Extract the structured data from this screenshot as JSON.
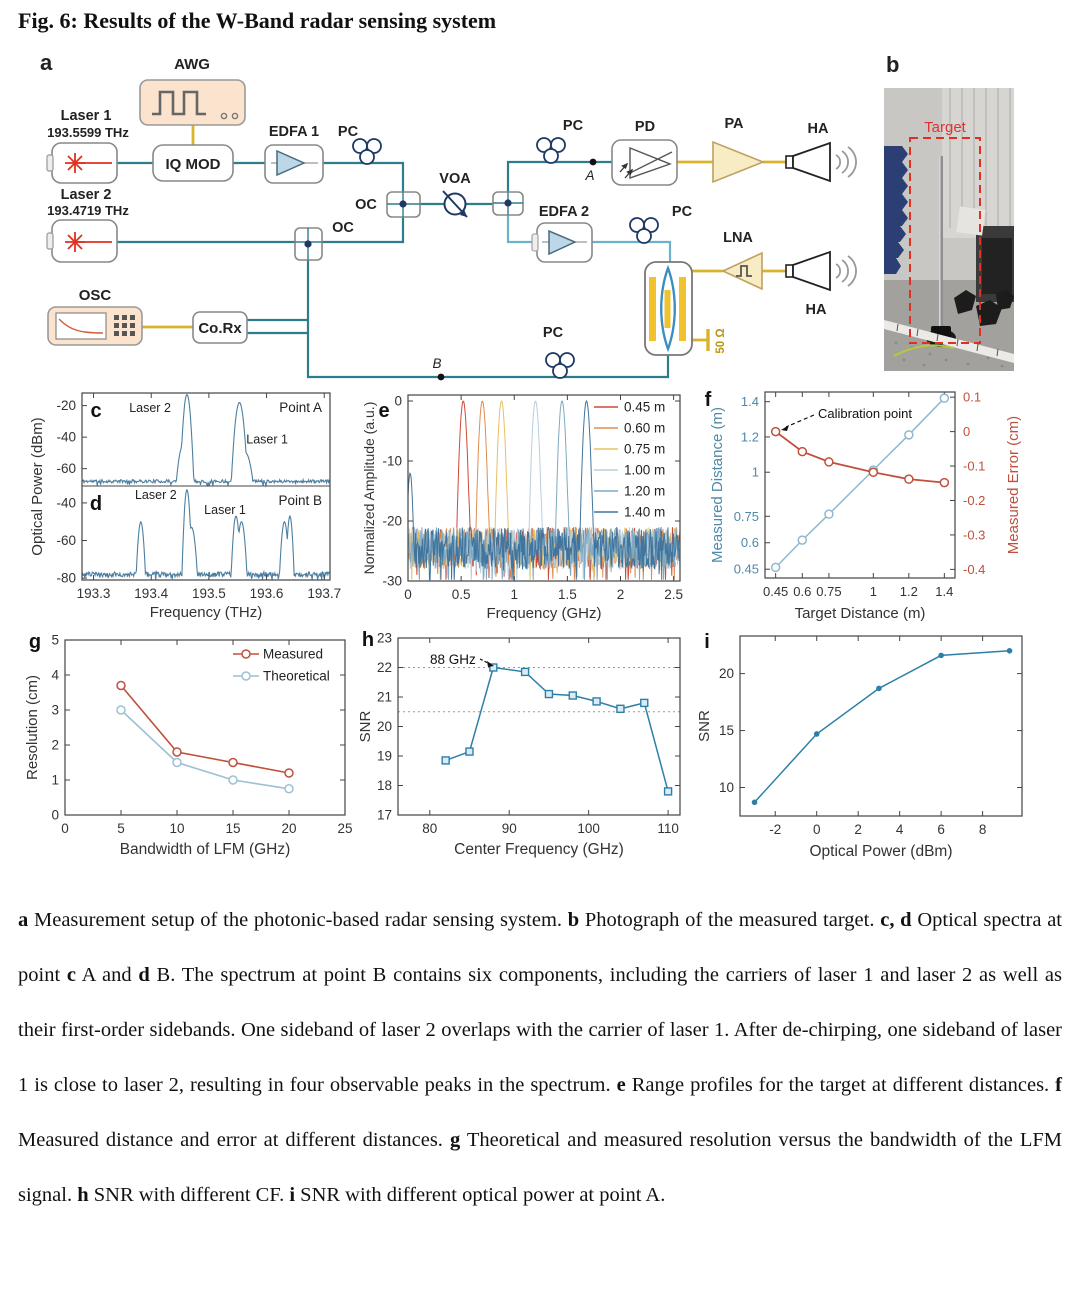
{
  "title": "Fig. 6: Results of the W-Band radar sensing system",
  "diagram": {
    "letter": "a",
    "awg": "AWG",
    "iq_mod": "IQ MOD",
    "laser1": "Laser 1",
    "laser1_freq": "193.5599 THz",
    "laser2": "Laser 2",
    "laser2_freq": "193.4719 THz",
    "edfa1": "EDFA 1",
    "edfa2": "EDFA 2",
    "pc": "PC",
    "oc": "OC",
    "voa": "VOA",
    "osc": "OSC",
    "corx": "Co.Rx",
    "pd": "PD",
    "pa": "PA",
    "lna": "LNA",
    "ha": "HA",
    "term": "50 Ω",
    "point_a": "A",
    "point_b": "B"
  },
  "photo": {
    "letter": "b",
    "target": "Target"
  },
  "chart_data": {
    "cd": {
      "type": "line",
      "xlabel": "Frequency (THz)",
      "ylabel": "Optical Power (dBm)",
      "xlim": [
        193.28,
        193.71
      ],
      "xticks": [
        "193.3",
        "193.4",
        "193.5",
        "193.6",
        "193.7"
      ],
      "xtick_vals": [
        193.3,
        193.4,
        193.5,
        193.6,
        193.7
      ],
      "panels": [
        {
          "letter": "c",
          "corner": "Point A",
          "ylim": [
            -71,
            -12
          ],
          "yticks": [
            -20,
            -40,
            -60
          ],
          "baseline": -68,
          "noise": 1.0,
          "peaks": [
            [
              193.462,
              -13,
              0.0016
            ],
            [
              193.4555,
              -45,
              0.0025
            ],
            [
              193.553,
              -18,
              0.002
            ],
            [
              193.5635,
              -50,
              0.003
            ]
          ],
          "peak_labels": [
            {
              "text": "Laser 2",
              "x": 193.398,
              "y": -24
            },
            {
              "text": "Laser 1",
              "x": 193.601,
              "y": -44
            }
          ]
        },
        {
          "letter": "d",
          "corner": "Point B",
          "ylim": [
            -81,
            -31
          ],
          "yticks": [
            -40,
            -60,
            -80
          ],
          "baseline": -78,
          "noise": 1.3,
          "peaks": [
            [
              193.382,
              -50,
              0.0015
            ],
            [
              193.462,
              -33,
              0.0013
            ],
            [
              193.47,
              -53,
              0.002
            ],
            [
              193.547,
              -47,
              0.0015
            ],
            [
              193.5565,
              -50,
              0.0018
            ],
            [
              193.631,
              -50,
              0.0016
            ],
            [
              193.6405,
              -47,
              0.0013
            ]
          ],
          "peak_labels": [
            {
              "text": "Laser 2",
              "x": 193.408,
              "y": -38
            },
            {
              "text": "Laser 1",
              "x": 193.528,
              "y": -46
            }
          ]
        }
      ]
    },
    "e": {
      "type": "line",
      "letter": "e",
      "xlabel": "Frequency (GHz)",
      "ylabel": "Normalized Amplitude (a.u.)",
      "xlim": [
        0,
        2.56
      ],
      "xticks": [
        "0",
        "0.5",
        "1",
        "1.5",
        "2",
        "2.5"
      ],
      "xtick_vals": [
        0,
        0.5,
        1,
        1.5,
        2,
        2.5
      ],
      "ylim": [
        -30,
        1
      ],
      "yticks": [
        0,
        -10,
        -20,
        -30
      ],
      "noise_floor": -24.5,
      "series": [
        {
          "name": "0.45 m",
          "color": "#cd4a38",
          "peak": 0.52
        },
        {
          "name": "0.60 m",
          "color": "#dd8d52",
          "peak": 0.7
        },
        {
          "name": "0.75 m",
          "color": "#e7c06a",
          "peak": 0.88
        },
        {
          "name": "1.00 m",
          "color": "#b9cfdc",
          "peak": 1.2
        },
        {
          "name": "1.20 m",
          "color": "#7ea9c2",
          "peak": 1.45
        },
        {
          "name": "1.40 m",
          "color": "#41759d",
          "peak": 1.68
        }
      ]
    },
    "f": {
      "type": "line",
      "letter": "f",
      "xlabel": "Target Distance (m)",
      "ylabel_left": "Measured Distance (m)",
      "ylabel_right": "Measured Error (cm)",
      "color_left": "#8fb8cc",
      "color_left_text": "#4d8aa8",
      "color_right": "#c0503c",
      "xlim": [
        0.39,
        1.46
      ],
      "xticks": [
        "0.45",
        "0.6",
        "0.75",
        "1",
        "1.2",
        "1.4"
      ],
      "xtick_vals": [
        0.45,
        0.6,
        0.75,
        1,
        1.2,
        1.4
      ],
      "ylim_left": [
        0.4,
        1.455
      ],
      "yticks_left": [
        "0.45",
        "0.6",
        "0.75",
        "1",
        "1.2",
        "1.4"
      ],
      "ytick_vals_left": [
        0.45,
        0.6,
        0.75,
        1,
        1.2,
        1.4
      ],
      "ylim_right": [
        -0.425,
        0.115
      ],
      "yticks_right": [
        "0.1",
        "0",
        "-0.1",
        "-0.2",
        "-0.3",
        "-0.4"
      ],
      "ytick_vals_right": [
        0.1,
        0,
        -0.1,
        -0.2,
        -0.3,
        -0.4
      ],
      "x": [
        0.45,
        0.6,
        0.75,
        1.0,
        1.2,
        1.4
      ],
      "measured_distance": [
        0.46,
        0.615,
        0.762,
        1.012,
        1.212,
        1.42
      ],
      "measured_error": [
        0.0,
        -0.058,
        -0.088,
        -0.118,
        -0.138,
        -0.148
      ],
      "annotation": "Calibration point"
    },
    "g": {
      "type": "line",
      "letter": "g",
      "xlabel": "Bandwidth of LFM (GHz)",
      "ylabel": "Resolution (cm)",
      "xlim": [
        0,
        25
      ],
      "xticks": [
        0,
        5,
        10,
        15,
        20,
        25
      ],
      "ylim": [
        0,
        5
      ],
      "yticks": [
        0,
        1,
        2,
        3,
        4,
        5
      ],
      "x": [
        5,
        10,
        15,
        20
      ],
      "series": [
        {
          "name": "Measured",
          "color": "#c0503c",
          "values": [
            3.7,
            1.8,
            1.5,
            1.2
          ]
        },
        {
          "name": "Theoretical",
          "color": "#9cc0d4",
          "values": [
            3.0,
            1.5,
            1.0,
            0.75
          ]
        }
      ]
    },
    "h": {
      "type": "line",
      "letter": "h",
      "xlabel": "Center Frequency (GHz)",
      "ylabel": "SNR",
      "xlim": [
        76,
        111.5
      ],
      "xticks": [
        80,
        90,
        100,
        110
      ],
      "ylim": [
        17,
        23
      ],
      "yticks": [
        17,
        18,
        19,
        20,
        21,
        22,
        23
      ],
      "x": [
        82,
        85,
        88,
        92,
        95,
        98,
        101,
        104,
        107,
        110
      ],
      "values": [
        18.85,
        19.15,
        22.0,
        21.85,
        21.1,
        21.05,
        20.85,
        20.6,
        20.8,
        17.8
      ],
      "color": "#2e7fa8",
      "annotation": "88 GHz",
      "ref_lines": [
        22,
        20.5
      ]
    },
    "i": {
      "type": "line",
      "letter": "i",
      "xlabel": "Optical Power (dBm)",
      "ylabel": "SNR",
      "xlim": [
        -3.7,
        9.9
      ],
      "xticks": [
        -2,
        0,
        2,
        4,
        6,
        8
      ],
      "ylim": [
        7.5,
        23.3
      ],
      "yticks": [
        10,
        15,
        20
      ],
      "x": [
        -3,
        0,
        3,
        6,
        9.3
      ],
      "values": [
        8.7,
        14.7,
        18.7,
        21.6,
        22.0
      ],
      "color": "#2e7fa8"
    }
  },
  "caption": {
    "segments": [
      {
        "bold": true,
        "text": "a"
      },
      {
        "bold": false,
        "text": " Measurement setup of the photonic-based radar sensing system. "
      },
      {
        "bold": true,
        "text": "b"
      },
      {
        "bold": false,
        "text": " Photograph of the measured target. "
      },
      {
        "bold": true,
        "text": "c, d"
      },
      {
        "bold": false,
        "text": " Optical spectra at point "
      },
      {
        "bold": true,
        "text": "c"
      },
      {
        "bold": false,
        "text": " A and "
      },
      {
        "bold": true,
        "text": "d"
      },
      {
        "bold": false,
        "text": " B. The spectrum at point B contains six components, including the carriers of laser 1 and laser 2 as well as their first-order sidebands. One sideband of laser 2 overlaps with the carrier of laser 1. After de-chirping, one sideband of laser 1 is close to laser 2, resulting in four observable peaks in the spectrum. "
      },
      {
        "bold": true,
        "text": "e"
      },
      {
        "bold": false,
        "text": " Range profiles for the target at different distances. "
      },
      {
        "bold": true,
        "text": "f"
      },
      {
        "bold": false,
        "text": " Measured distance and error at different distances. "
      },
      {
        "bold": true,
        "text": "g"
      },
      {
        "bold": false,
        "text": " Theoretical and measured resolution versus the bandwidth of the LFM signal. "
      },
      {
        "bold": true,
        "text": "h"
      },
      {
        "bold": false,
        "text": " SNR with different CF. "
      },
      {
        "bold": true,
        "text": "i"
      },
      {
        "bold": false,
        "text": " SNR with different optical power at point A."
      }
    ]
  }
}
